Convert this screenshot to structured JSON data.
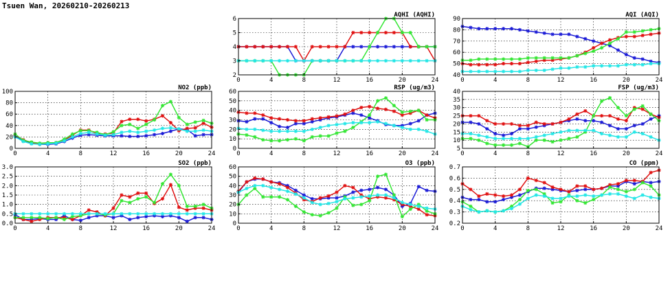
{
  "title": "Tsuen Wan, 20260210-20260213",
  "colors": {
    "blue": "#1a1ad6",
    "red": "#e01010",
    "green": "#33e633",
    "cyan": "#22e6e6"
  },
  "x_ticks": [
    "0",
    "4",
    "8",
    "12",
    "16",
    "20",
    "24"
  ],
  "chart_data": [
    {
      "id": "aqhi",
      "type": "line",
      "title": "AQHI (AQHI)",
      "xlim": [
        0,
        24
      ],
      "ylim": [
        2,
        6
      ],
      "yticks": [
        "2",
        "3",
        "4",
        "5",
        "6"
      ],
      "series": [
        {
          "name": "blue",
          "values": [
            4,
            4,
            4,
            4,
            4,
            4,
            4,
            3,
            3,
            3,
            3,
            3,
            3,
            4,
            4,
            4,
            4,
            4,
            4,
            4,
            4,
            4,
            4,
            4,
            4
          ]
        },
        {
          "name": "red",
          "values": [
            4,
            4,
            4,
            4,
            4,
            4,
            4,
            4,
            3,
            4,
            4,
            4,
            4,
            4,
            5,
            5,
            5,
            5,
            5,
            5,
            5,
            4,
            4,
            4,
            3
          ]
        },
        {
          "name": "green",
          "values": [
            3,
            3,
            3,
            3,
            3,
            2,
            2,
            2,
            2,
            3,
            3,
            3,
            3,
            3,
            3,
            3,
            4,
            5,
            6,
            6,
            5,
            5,
            4,
            4,
            4
          ]
        },
        {
          "name": "cyan",
          "values": [
            3,
            3,
            3,
            3,
            3,
            3,
            3,
            3,
            3,
            3,
            3,
            3,
            3,
            3,
            3,
            3,
            3,
            3,
            3,
            3,
            3,
            3,
            3,
            3,
            3
          ]
        }
      ]
    },
    {
      "id": "aqi",
      "type": "line",
      "title": "AQI (AQI)",
      "xlim": [
        0,
        24
      ],
      "ylim": [
        40,
        90
      ],
      "yticks": [
        "40",
        "50",
        "60",
        "70",
        "80",
        "90"
      ],
      "series": [
        {
          "name": "blue",
          "values": [
            83,
            82,
            81,
            81,
            81,
            81,
            81,
            80,
            79,
            78,
            77,
            76,
            76,
            76,
            74,
            72,
            70,
            68,
            66,
            62,
            58,
            55,
            54,
            52,
            51
          ]
        },
        {
          "name": "red",
          "values": [
            50,
            49,
            49,
            49,
            49,
            50,
            50,
            50,
            51,
            52,
            53,
            53,
            54,
            55,
            57,
            60,
            64,
            68,
            71,
            73,
            74,
            74,
            75,
            76,
            77
          ]
        },
        {
          "name": "green",
          "values": [
            53,
            53,
            54,
            54,
            54,
            54,
            54,
            54,
            55,
            55,
            55,
            55,
            55,
            55,
            57,
            59,
            61,
            64,
            68,
            72,
            78,
            78,
            79,
            80,
            81
          ]
        },
        {
          "name": "cyan",
          "values": [
            43,
            43,
            43,
            43,
            43,
            43,
            43,
            43,
            44,
            44,
            44,
            45,
            46,
            46,
            47,
            47,
            48,
            48,
            48,
            48,
            49,
            49,
            49,
            50,
            50
          ]
        }
      ]
    },
    {
      "id": "no2",
      "type": "line",
      "title": "NO2 (ppb)",
      "xlim": [
        0,
        24
      ],
      "ylim": [
        0,
        100
      ],
      "yticks": [
        "0",
        "20",
        "40",
        "60",
        "80",
        "100"
      ],
      "series": [
        {
          "name": "blue",
          "values": [
            22,
            13,
            9,
            7,
            7,
            8,
            12,
            18,
            23,
            24,
            23,
            22,
            22,
            22,
            21,
            21,
            22,
            24,
            26,
            30,
            34,
            33,
            22,
            24,
            24
          ]
        },
        {
          "name": "red",
          "values": [
            23,
            15,
            10,
            8,
            10,
            10,
            14,
            23,
            32,
            32,
            26,
            25,
            27,
            47,
            51,
            51,
            48,
            51,
            57,
            45,
            31,
            35,
            36,
            44,
            37
          ]
        },
        {
          "name": "green",
          "values": [
            25,
            14,
            11,
            9,
            10,
            10,
            16,
            25,
            31,
            31,
            28,
            24,
            29,
            40,
            42,
            35,
            42,
            50,
            75,
            82,
            54,
            42,
            46,
            49,
            44
          ]
        },
        {
          "name": "cyan",
          "values": [
            20,
            12,
            8,
            7,
            8,
            9,
            13,
            20,
            26,
            28,
            25,
            23,
            24,
            28,
            30,
            28,
            30,
            32,
            35,
            36,
            34,
            30,
            30,
            32,
            30
          ]
        }
      ]
    },
    {
      "id": "rsp",
      "type": "line",
      "title": "RSP (ug/m3)",
      "xlim": [
        0,
        24
      ],
      "ylim": [
        0,
        60
      ],
      "yticks": [
        "0",
        "10",
        "20",
        "30",
        "40",
        "50",
        "60"
      ],
      "series": [
        {
          "name": "blue",
          "values": [
            29,
            28,
            31,
            31,
            27,
            23,
            22,
            26,
            26,
            28,
            30,
            32,
            33,
            35,
            37,
            35,
            32,
            29,
            25,
            24,
            24,
            26,
            29,
            35,
            37
          ]
        },
        {
          "name": "red",
          "values": [
            38,
            37,
            37,
            35,
            32,
            31,
            30,
            29,
            29,
            31,
            32,
            33,
            34,
            36,
            40,
            43,
            44,
            42,
            41,
            39,
            35,
            37,
            40,
            35,
            32
          ]
        },
        {
          "name": "green",
          "values": [
            15,
            14,
            12,
            9,
            8,
            8,
            9,
            10,
            8,
            12,
            13,
            13,
            16,
            18,
            22,
            28,
            35,
            50,
            53,
            45,
            38,
            39,
            40,
            30,
            30
          ]
        },
        {
          "name": "cyan",
          "values": [
            21,
            20,
            20,
            19,
            18,
            18,
            18,
            18,
            18,
            20,
            22,
            24,
            25,
            26,
            27,
            27,
            27,
            28,
            26,
            24,
            22,
            20,
            20,
            18,
            15
          ]
        }
      ]
    },
    {
      "id": "fsp",
      "type": "line",
      "title": "FSP (ug/m3)",
      "xlim": [
        0,
        24
      ],
      "ylim": [
        5,
        40
      ],
      "yticks": [
        "5",
        "10",
        "15",
        "20",
        "25",
        "30",
        "35",
        "40"
      ],
      "series": [
        {
          "name": "blue",
          "values": [
            21,
            21,
            20,
            17,
            14,
            13,
            14,
            17,
            17,
            18,
            19,
            20,
            21,
            22,
            23,
            22,
            22,
            21,
            19,
            17,
            17,
            19,
            20,
            23,
            25
          ]
        },
        {
          "name": "red",
          "values": [
            25,
            25,
            25,
            22,
            20,
            20,
            20,
            19,
            19,
            21,
            20,
            20,
            21,
            23,
            26,
            28,
            25,
            25,
            25,
            23,
            22,
            30,
            29,
            26,
            24
          ]
        },
        {
          "name": "green",
          "values": [
            11,
            11,
            10,
            8,
            7,
            7,
            7,
            8,
            6,
            10,
            10,
            9,
            10,
            11,
            12,
            15,
            25,
            34,
            36,
            30,
            25,
            29,
            31,
            26,
            22
          ]
        },
        {
          "name": "cyan",
          "values": [
            14,
            14,
            13,
            12,
            11,
            11,
            11,
            11,
            11,
            12,
            13,
            14,
            15,
            16,
            16,
            16,
            16,
            14,
            13,
            12,
            12,
            15,
            14,
            12,
            10
          ]
        }
      ]
    },
    {
      "id": "so2",
      "type": "line",
      "title": "SO2 (ppb)",
      "xlim": [
        0,
        24
      ],
      "ylim": [
        0,
        3
      ],
      "yticks": [
        "0.0",
        "0.5",
        "1.0",
        "1.5",
        "2.0",
        "2.5",
        "3.0"
      ],
      "series": [
        {
          "name": "blue",
          "values": [
            0.45,
            0.2,
            0.2,
            0.25,
            0.2,
            0.2,
            0.4,
            0.2,
            0.15,
            0.3,
            0.4,
            0.4,
            0.3,
            0.4,
            0.2,
            0.3,
            0.35,
            0.4,
            0.35,
            0.4,
            0.3,
            0.1,
            0.3,
            0.3,
            0.2
          ]
        },
        {
          "name": "red",
          "values": [
            0.3,
            0.2,
            0.1,
            0.2,
            0.3,
            0.3,
            0.3,
            0.2,
            0.4,
            0.7,
            0.6,
            0.4,
            0.8,
            1.5,
            1.4,
            1.6,
            1.6,
            1.05,
            1.3,
            2.05,
            0.85,
            0.7,
            0.8,
            0.8,
            0.7
          ]
        },
        {
          "name": "green",
          "values": [
            0.3,
            0.3,
            0.3,
            0.3,
            0.25,
            0.3,
            0.2,
            0.35,
            0.4,
            0.5,
            0.5,
            0.45,
            0.5,
            1.2,
            1.1,
            1.3,
            1.4,
            1.1,
            2.1,
            2.6,
            2.0,
            0.9,
            0.9,
            1.0,
            0.8
          ]
        },
        {
          "name": "cyan",
          "values": [
            0.5,
            0.5,
            0.5,
            0.5,
            0.5,
            0.5,
            0.5,
            0.5,
            0.5,
            0.5,
            0.5,
            0.5,
            0.5,
            0.5,
            0.5,
            0.5,
            0.5,
            0.5,
            0.5,
            0.5,
            0.5,
            0.5,
            0.5,
            0.5,
            0.5
          ]
        }
      ]
    },
    {
      "id": "o3",
      "type": "line",
      "title": "O3 (ppb)",
      "xlim": [
        0,
        24
      ],
      "ylim": [
        0,
        60
      ],
      "yticks": [
        "0",
        "10",
        "20",
        "30",
        "40",
        "50",
        "60"
      ],
      "series": [
        {
          "name": "blue",
          "values": [
            33,
            44,
            47,
            47,
            44,
            43,
            40,
            35,
            30,
            26,
            26,
            27,
            27,
            29,
            33,
            35,
            36,
            38,
            36,
            30,
            18,
            21,
            39,
            35,
            34
          ]
        },
        {
          "name": "red",
          "values": [
            34,
            44,
            48,
            47,
            44,
            42,
            38,
            32,
            25,
            23,
            27,
            29,
            33,
            40,
            38,
            30,
            26,
            28,
            27,
            25,
            20,
            18,
            15,
            9,
            8
          ]
        },
        {
          "name": "green",
          "values": [
            20,
            30,
            37,
            28,
            28,
            28,
            25,
            18,
            12,
            9,
            8,
            11,
            16,
            28,
            19,
            20,
            24,
            50,
            52,
            30,
            7,
            15,
            20,
            13,
            10
          ]
        },
        {
          "name": "cyan",
          "values": [
            33,
            37,
            40,
            40,
            38,
            36,
            34,
            31,
            27,
            22,
            20,
            21,
            23,
            26,
            27,
            28,
            29,
            30,
            30,
            27,
            22,
            20,
            18,
            16,
            15
          ]
        }
      ]
    },
    {
      "id": "co",
      "type": "line",
      "title": "CO (ppm)",
      "xlim": [
        0,
        24
      ],
      "ylim": [
        0.2,
        0.7
      ],
      "yticks": [
        "0.2",
        "0.3",
        "0.4",
        "0.5",
        "0.6",
        "0.7"
      ],
      "series": [
        {
          "name": "blue",
          "values": [
            0.43,
            0.41,
            0.41,
            0.39,
            0.39,
            0.41,
            0.43,
            0.45,
            0.48,
            0.51,
            0.51,
            0.5,
            0.49,
            0.48,
            0.49,
            0.5,
            0.5,
            0.51,
            0.53,
            0.53,
            0.57,
            0.55,
            0.57,
            0.56,
            0.57
          ]
        },
        {
          "name": "red",
          "values": [
            0.55,
            0.5,
            0.44,
            0.46,
            0.45,
            0.44,
            0.45,
            0.5,
            0.6,
            0.58,
            0.56,
            0.52,
            0.5,
            0.48,
            0.53,
            0.53,
            0.5,
            0.51,
            0.54,
            0.55,
            0.58,
            0.58,
            0.57,
            0.65,
            0.67
          ]
        },
        {
          "name": "green",
          "values": [
            0.39,
            0.35,
            0.3,
            0.31,
            0.3,
            0.31,
            0.35,
            0.41,
            0.49,
            0.5,
            0.46,
            0.38,
            0.39,
            0.45,
            0.4,
            0.38,
            0.41,
            0.45,
            0.52,
            0.5,
            0.48,
            0.5,
            0.56,
            0.53,
            0.45
          ]
        },
        {
          "name": "cyan",
          "values": [
            0.35,
            0.32,
            0.3,
            0.31,
            0.3,
            0.31,
            0.33,
            0.37,
            0.42,
            0.45,
            0.44,
            0.42,
            0.42,
            0.44,
            0.44,
            0.45,
            0.44,
            0.45,
            0.46,
            0.46,
            0.44,
            0.42,
            0.45,
            0.43,
            0.42
          ]
        }
      ]
    }
  ]
}
